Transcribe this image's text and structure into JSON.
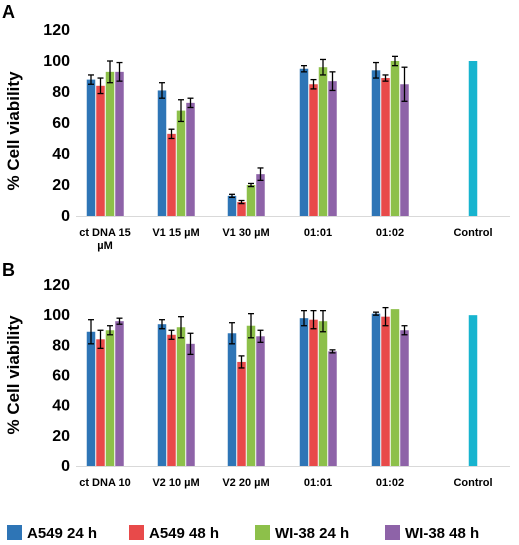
{
  "legend": [
    {
      "name": "A549 24 h",
      "color": "#2e75b6"
    },
    {
      "name": "A549 48 h",
      "color": "#e84a4a"
    },
    {
      "name": "WI-38 24 h",
      "color": "#8dc04a"
    },
    {
      "name": "WI-38 48 h",
      "color": "#8e63a8"
    }
  ],
  "control_color": "#17b4cf",
  "chart_data": [
    {
      "type": "bar",
      "panel_label": "A",
      "ylabel": "% Cell viability",
      "ylim": [
        0,
        120
      ],
      "yticks": [
        0,
        20,
        40,
        60,
        80,
        100,
        120
      ],
      "grid": false,
      "categories": [
        [
          "ct DNA 15",
          "µM"
        ],
        [
          "V1 15  µM"
        ],
        [
          "V1  30  µM"
        ],
        [
          "01:01"
        ],
        [
          "01:02"
        ],
        [
          "Control"
        ]
      ],
      "series": [
        {
          "name": "A549 24 h",
          "values": [
            88,
            81,
            13,
            95,
            94,
            null
          ],
          "errors": [
            3,
            5,
            1,
            2,
            5,
            null
          ]
        },
        {
          "name": "A549 48 h",
          "values": [
            84,
            53,
            9,
            85,
            89,
            null
          ],
          "errors": [
            5,
            3,
            1,
            3,
            2,
            null
          ]
        },
        {
          "name": "WI-38 24 h",
          "values": [
            93,
            68,
            20,
            96,
            100,
            null
          ],
          "errors": [
            7,
            7,
            1,
            5,
            3,
            null
          ]
        },
        {
          "name": "WI-38 48 h",
          "values": [
            93,
            73,
            27,
            87,
            85,
            null
          ],
          "errors": [
            6,
            3,
            4,
            6,
            11,
            null
          ]
        },
        {
          "name": "Control",
          "values": [
            null,
            null,
            null,
            null,
            null,
            100
          ],
          "errors": [
            null,
            null,
            null,
            null,
            null,
            0
          ]
        }
      ]
    },
    {
      "type": "bar",
      "panel_label": "B",
      "ylabel": "% Cell viability",
      "ylim": [
        0,
        120
      ],
      "yticks": [
        0,
        20,
        40,
        60,
        80,
        100,
        120
      ],
      "grid": false,
      "categories": [
        [
          "ct DNA 10"
        ],
        [
          "V2 10 µM"
        ],
        [
          "V2  20 µM"
        ],
        [
          "01:01"
        ],
        [
          "01:02"
        ],
        [
          "Control"
        ]
      ],
      "series": [
        {
          "name": "A549 24 h",
          "values": [
            89,
            94,
            88,
            98,
            101,
            null
          ],
          "errors": [
            8,
            3,
            7,
            5,
            1,
            null
          ]
        },
        {
          "name": "A549 48 h",
          "values": [
            84,
            87,
            69,
            97,
            99,
            null
          ],
          "errors": [
            6,
            3,
            4,
            6,
            6,
            null
          ]
        },
        {
          "name": "WI-38 24 h",
          "values": [
            90,
            92,
            93,
            96,
            104,
            null
          ],
          "errors": [
            3,
            7,
            8,
            7,
            0,
            null
          ]
        },
        {
          "name": "WI-38 48 h",
          "values": [
            96,
            81,
            86,
            76,
            90,
            null
          ],
          "errors": [
            2,
            7,
            4,
            1,
            3,
            null
          ]
        },
        {
          "name": "Control",
          "values": [
            null,
            null,
            null,
            null,
            null,
            100
          ],
          "errors": [
            null,
            null,
            null,
            null,
            null,
            0
          ]
        }
      ]
    }
  ]
}
